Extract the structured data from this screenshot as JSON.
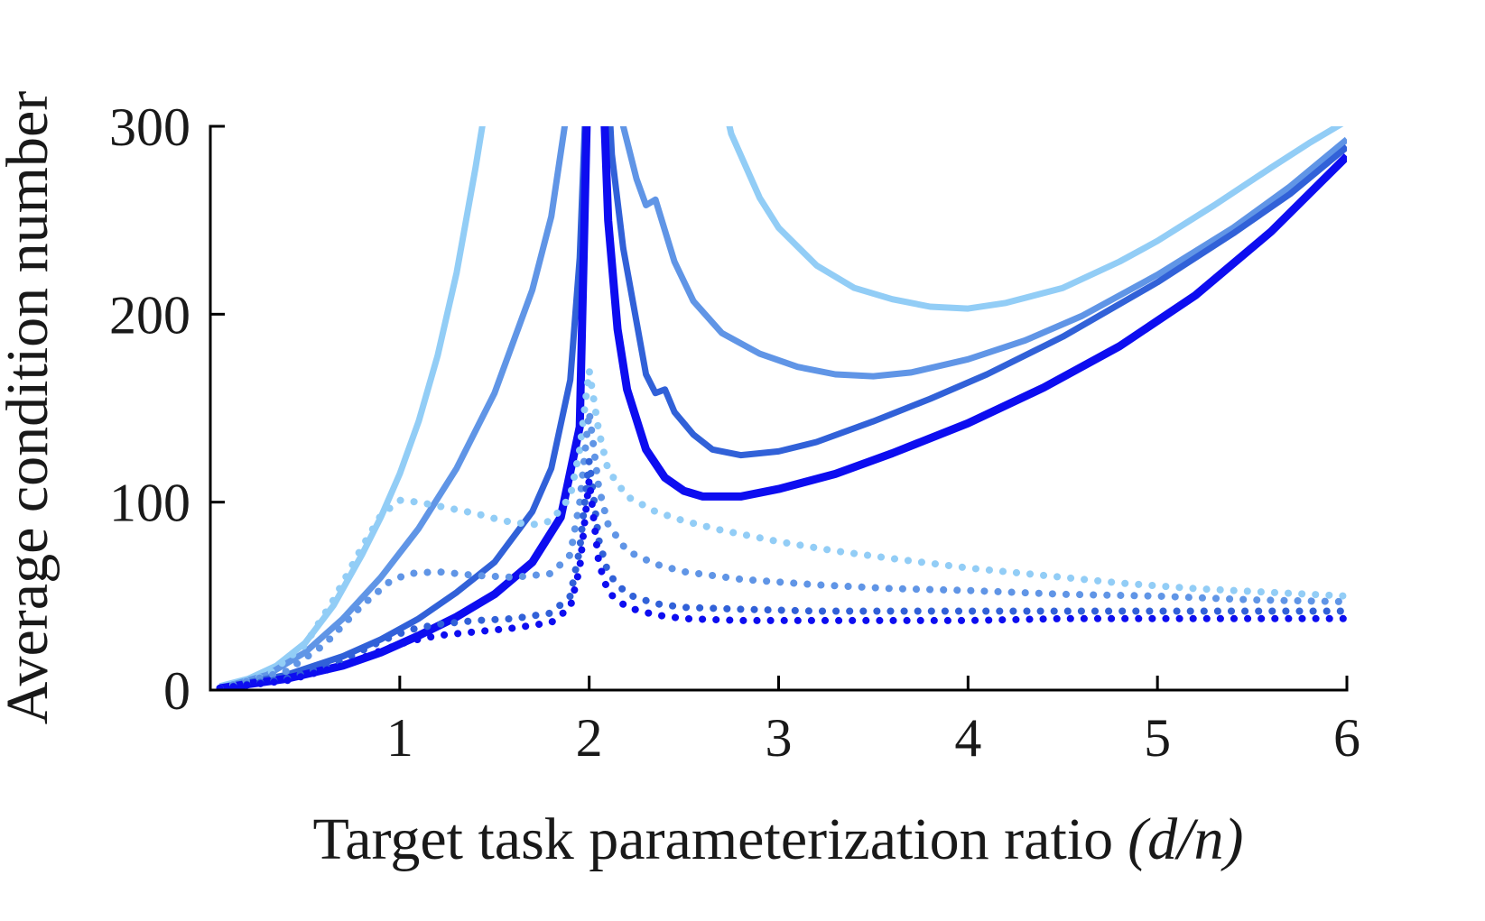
{
  "chart_data": {
    "type": "line",
    "title": "",
    "xlabel_text": "Target task parameterization ratio",
    "xlabel_math": "(d/n)",
    "ylabel": "Average condition number",
    "xlim": [
      0,
      6
    ],
    "ylim": [
      0,
      300
    ],
    "x_ticks": [
      1,
      2,
      3,
      4,
      5,
      6
    ],
    "y_ticks": [
      0,
      100,
      200,
      300
    ],
    "grid": false,
    "legend": "none",
    "axis_color": "#000000",
    "colors": {
      "light_blue": "#92cdf6",
      "medium_blue": "#6095e6",
      "royal_blue": "#3161d8",
      "pure_blue": "#0d0df0"
    },
    "series": [
      {
        "name": "solid-light-blue",
        "style": "solid",
        "color": "#92cdf6",
        "width": 7,
        "points": [
          [
            0.05,
            2
          ],
          [
            0.2,
            6
          ],
          [
            0.35,
            13
          ],
          [
            0.5,
            25
          ],
          [
            0.65,
            45
          ],
          [
            0.8,
            72
          ],
          [
            0.9,
            92
          ],
          [
            1.0,
            115
          ],
          [
            1.1,
            143
          ],
          [
            1.2,
            178
          ],
          [
            1.3,
            222
          ],
          [
            1.4,
            278
          ],
          [
            1.5,
            340
          ],
          [
            2.65,
            340
          ],
          [
            2.75,
            296
          ],
          [
            2.9,
            262
          ],
          [
            3.0,
            246
          ],
          [
            3.2,
            226
          ],
          [
            3.4,
            214
          ],
          [
            3.6,
            208
          ],
          [
            3.8,
            204
          ],
          [
            4.0,
            203
          ],
          [
            4.2,
            206
          ],
          [
            4.5,
            214
          ],
          [
            4.8,
            228
          ],
          [
            5.0,
            239
          ],
          [
            5.3,
            258
          ],
          [
            5.6,
            278
          ],
          [
            5.8,
            291
          ],
          [
            6.0,
            303
          ]
        ]
      },
      {
        "name": "solid-medium-blue",
        "style": "solid",
        "color": "#6095e6",
        "width": 7,
        "points": [
          [
            0.05,
            1
          ],
          [
            0.3,
            8
          ],
          [
            0.5,
            20
          ],
          [
            0.7,
            38
          ],
          [
            0.9,
            60
          ],
          [
            1.1,
            86
          ],
          [
            1.3,
            118
          ],
          [
            1.5,
            158
          ],
          [
            1.7,
            213
          ],
          [
            1.8,
            252
          ],
          [
            1.9,
            320
          ],
          [
            1.95,
            360
          ],
          [
            2.12,
            360
          ],
          [
            2.18,
            300
          ],
          [
            2.25,
            272
          ],
          [
            2.3,
            258
          ],
          [
            2.35,
            261
          ],
          [
            2.45,
            228
          ],
          [
            2.55,
            207
          ],
          [
            2.7,
            190
          ],
          [
            2.9,
            179
          ],
          [
            3.1,
            172
          ],
          [
            3.3,
            168
          ],
          [
            3.5,
            167
          ],
          [
            3.7,
            169
          ],
          [
            4.0,
            176
          ],
          [
            4.3,
            186
          ],
          [
            4.6,
            199
          ],
          [
            5.0,
            221
          ],
          [
            5.4,
            246
          ],
          [
            5.7,
            268
          ],
          [
            6.0,
            293
          ]
        ]
      },
      {
        "name": "solid-royal-blue",
        "style": "solid",
        "color": "#3161d8",
        "width": 7,
        "points": [
          [
            0.05,
            1
          ],
          [
            0.4,
            8
          ],
          [
            0.7,
            18
          ],
          [
            0.9,
            27
          ],
          [
            1.1,
            38
          ],
          [
            1.3,
            52
          ],
          [
            1.5,
            68
          ],
          [
            1.7,
            95
          ],
          [
            1.8,
            118
          ],
          [
            1.9,
            165
          ],
          [
            1.95,
            230
          ],
          [
            2.0,
            360
          ],
          [
            2.08,
            360
          ],
          [
            2.12,
            285
          ],
          [
            2.18,
            235
          ],
          [
            2.25,
            196
          ],
          [
            2.3,
            168
          ],
          [
            2.35,
            158
          ],
          [
            2.4,
            160
          ],
          [
            2.45,
            148
          ],
          [
            2.55,
            136
          ],
          [
            2.65,
            128
          ],
          [
            2.8,
            125
          ],
          [
            3.0,
            127
          ],
          [
            3.2,
            132
          ],
          [
            3.5,
            143
          ],
          [
            3.8,
            155
          ],
          [
            4.1,
            168
          ],
          [
            4.5,
            188
          ],
          [
            5.0,
            217
          ],
          [
            5.4,
            243
          ],
          [
            5.7,
            264
          ],
          [
            6.0,
            289
          ]
        ]
      },
      {
        "name": "solid-pure-blue",
        "style": "solid",
        "color": "#0d0df0",
        "width": 9,
        "points": [
          [
            0.05,
            1
          ],
          [
            0.4,
            6
          ],
          [
            0.7,
            13
          ],
          [
            0.9,
            20
          ],
          [
            1.1,
            29
          ],
          [
            1.3,
            39
          ],
          [
            1.5,
            51
          ],
          [
            1.7,
            68
          ],
          [
            1.85,
            92
          ],
          [
            1.95,
            140
          ],
          [
            2.0,
            360
          ],
          [
            2.06,
            360
          ],
          [
            2.1,
            250
          ],
          [
            2.15,
            192
          ],
          [
            2.2,
            160
          ],
          [
            2.3,
            128
          ],
          [
            2.4,
            113
          ],
          [
            2.5,
            106
          ],
          [
            2.6,
            103
          ],
          [
            2.8,
            103
          ],
          [
            3.0,
            107
          ],
          [
            3.3,
            115
          ],
          [
            3.6,
            126
          ],
          [
            4.0,
            142
          ],
          [
            4.4,
            161
          ],
          [
            4.8,
            183
          ],
          [
            5.2,
            210
          ],
          [
            5.6,
            244
          ],
          [
            6.0,
            284
          ]
        ]
      },
      {
        "name": "dotted-light-blue",
        "style": "dotted",
        "color": "#92cdf6",
        "width": 8,
        "points": [
          [
            0.05,
            1
          ],
          [
            0.3,
            8
          ],
          [
            0.5,
            24
          ],
          [
            0.65,
            48
          ],
          [
            0.8,
            76
          ],
          [
            0.9,
            93
          ],
          [
            1.0,
            101
          ],
          [
            1.1,
            100
          ],
          [
            1.25,
            97
          ],
          [
            1.4,
            94
          ],
          [
            1.55,
            90
          ],
          [
            1.7,
            88
          ],
          [
            1.8,
            90
          ],
          [
            1.9,
            103
          ],
          [
            1.95,
            128
          ],
          [
            2.0,
            170
          ],
          [
            2.05,
            138
          ],
          [
            2.1,
            117
          ],
          [
            2.2,
            103
          ],
          [
            2.35,
            95
          ],
          [
            2.5,
            90
          ],
          [
            2.7,
            85
          ],
          [
            3.0,
            79
          ],
          [
            3.3,
            74
          ],
          [
            3.6,
            70
          ],
          [
            4.0,
            65
          ],
          [
            4.4,
            61
          ],
          [
            4.8,
            57
          ],
          [
            5.2,
            54
          ],
          [
            5.6,
            52
          ],
          [
            6.0,
            50
          ]
        ]
      },
      {
        "name": "dotted-medium-blue",
        "style": "dotted",
        "color": "#6095e6",
        "width": 8,
        "points": [
          [
            0.05,
            1
          ],
          [
            0.4,
            10
          ],
          [
            0.6,
            24
          ],
          [
            0.8,
            45
          ],
          [
            0.95,
            58
          ],
          [
            1.05,
            62
          ],
          [
            1.2,
            63
          ],
          [
            1.4,
            61
          ],
          [
            1.6,
            60
          ],
          [
            1.8,
            62
          ],
          [
            1.9,
            72
          ],
          [
            1.95,
            100
          ],
          [
            2.0,
            148
          ],
          [
            2.05,
            108
          ],
          [
            2.1,
            88
          ],
          [
            2.2,
            74
          ],
          [
            2.35,
            67
          ],
          [
            2.5,
            63
          ],
          [
            2.8,
            59
          ],
          [
            3.2,
            56
          ],
          [
            3.6,
            54
          ],
          [
            4.0,
            53
          ],
          [
            4.5,
            51
          ],
          [
            5.0,
            50
          ],
          [
            5.5,
            48
          ],
          [
            6.0,
            47
          ]
        ]
      },
      {
        "name": "dotted-royal-blue",
        "style": "dotted",
        "color": "#3161d8",
        "width": 8,
        "points": [
          [
            0.05,
            1
          ],
          [
            0.4,
            6
          ],
          [
            0.7,
            16
          ],
          [
            0.9,
            26
          ],
          [
            1.05,
            32
          ],
          [
            1.2,
            35
          ],
          [
            1.4,
            37
          ],
          [
            1.6,
            38
          ],
          [
            1.8,
            41
          ],
          [
            1.9,
            50
          ],
          [
            1.95,
            75
          ],
          [
            2.0,
            122
          ],
          [
            2.05,
            80
          ],
          [
            2.1,
            62
          ],
          [
            2.2,
            51
          ],
          [
            2.35,
            46
          ],
          [
            2.5,
            44
          ],
          [
            2.8,
            43
          ],
          [
            3.2,
            42
          ],
          [
            3.6,
            42
          ],
          [
            4.0,
            42
          ],
          [
            4.5,
            42
          ],
          [
            5.0,
            42
          ],
          [
            5.5,
            42
          ],
          [
            6.0,
            42
          ]
        ]
      },
      {
        "name": "dotted-pure-blue",
        "style": "dotted",
        "color": "#0d0df0",
        "width": 8,
        "points": [
          [
            0.05,
            1
          ],
          [
            0.4,
            5
          ],
          [
            0.7,
            13
          ],
          [
            0.9,
            21
          ],
          [
            1.05,
            26
          ],
          [
            1.2,
            29
          ],
          [
            1.4,
            31
          ],
          [
            1.6,
            33
          ],
          [
            1.8,
            36
          ],
          [
            1.9,
            44
          ],
          [
            1.95,
            65
          ],
          [
            2.0,
            112
          ],
          [
            2.05,
            68
          ],
          [
            2.1,
            52
          ],
          [
            2.2,
            44
          ],
          [
            2.35,
            40
          ],
          [
            2.5,
            38
          ],
          [
            2.8,
            37
          ],
          [
            3.2,
            37
          ],
          [
            3.6,
            37
          ],
          [
            4.0,
            37
          ],
          [
            4.5,
            38
          ],
          [
            5.0,
            38
          ],
          [
            5.5,
            38
          ],
          [
            6.0,
            38
          ]
        ]
      }
    ]
  }
}
